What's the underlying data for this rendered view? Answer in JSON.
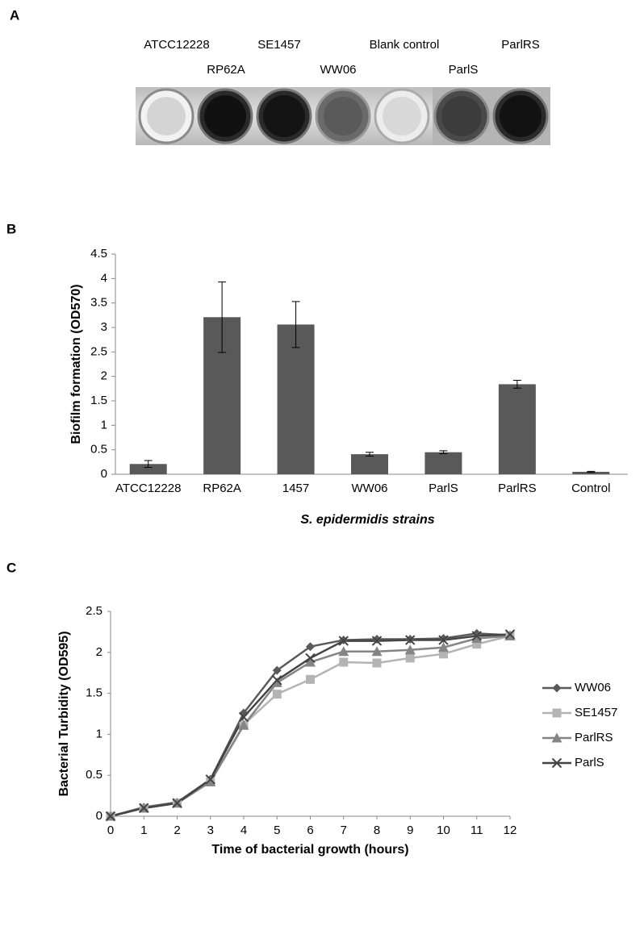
{
  "panel_a": {
    "panel": "A",
    "well_labels": [
      "ATCC12228",
      "RP62A",
      "SE1457",
      "WW06",
      "Blank control",
      "ParlS",
      "ParlRS"
    ]
  },
  "chart_data": [
    {
      "type": "bar",
      "panel": "B",
      "categories": [
        "ATCC12228",
        "RP62A",
        "1457",
        "WW06",
        "ParlS",
        "ParlRS",
        "Control"
      ],
      "values": [
        0.21,
        3.21,
        3.06,
        0.41,
        0.45,
        1.84,
        0.05
      ],
      "error": [
        0.07,
        0.72,
        0.47,
        0.04,
        0.03,
        0.08,
        0.01
      ],
      "color": "#595959",
      "ylabel": "Biofilm formation (OD570)",
      "xlabel": "S. epidermidis strains",
      "ylim": [
        0,
        4.5
      ],
      "yticks": [
        0,
        0.5,
        1,
        1.5,
        2,
        2.5,
        3,
        3.5,
        4,
        4.5
      ]
    },
    {
      "type": "line",
      "panel": "C",
      "x": [
        0,
        1,
        2,
        3,
        4,
        5,
        6,
        7,
        8,
        9,
        10,
        11,
        12
      ],
      "series": [
        {
          "name": "WW06",
          "color": "#5a5a5a",
          "marker": "diamond",
          "values": [
            0,
            0.11,
            0.17,
            0.45,
            1.26,
            1.78,
            2.07,
            2.15,
            2.16,
            2.16,
            2.17,
            2.23,
            2.21
          ]
        },
        {
          "name": "SE1457",
          "color": "#b4b4b4",
          "marker": "square",
          "values": [
            0,
            0.1,
            0.16,
            0.42,
            1.12,
            1.49,
            1.67,
            1.88,
            1.87,
            1.93,
            1.98,
            2.1,
            2.2
          ]
        },
        {
          "name": "ParlRS",
          "color": "#858585",
          "marker": "triangle",
          "values": [
            0,
            0.1,
            0.16,
            0.42,
            1.11,
            1.63,
            1.88,
            2.01,
            2.01,
            2.03,
            2.06,
            2.17,
            2.2
          ]
        },
        {
          "name": "ParlS",
          "color": "#444444",
          "marker": "x",
          "values": [
            0,
            0.1,
            0.16,
            0.45,
            1.21,
            1.66,
            1.93,
            2.14,
            2.14,
            2.15,
            2.15,
            2.2,
            2.22
          ]
        }
      ],
      "ylabel": "Bacterial Turbidity (OD595)",
      "xlabel": "Time of  bacterial growth (hours)",
      "xlim": [
        0,
        12
      ],
      "xticks": [
        0,
        1,
        2,
        3,
        4,
        5,
        6,
        7,
        8,
        9,
        10,
        11,
        12
      ],
      "ylim": [
        0,
        2.5
      ],
      "yticks": [
        0,
        0.5,
        1,
        1.5,
        2,
        2.5
      ],
      "legend": "right"
    }
  ]
}
